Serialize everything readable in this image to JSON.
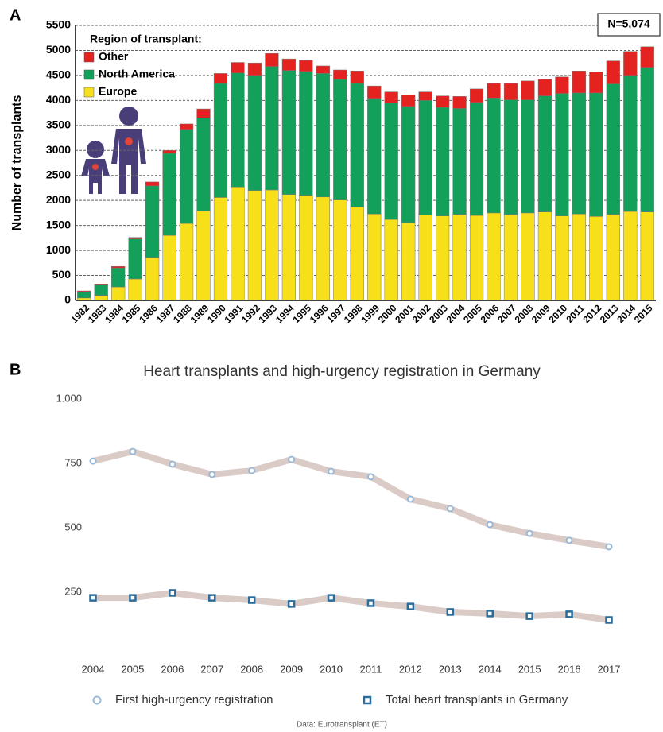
{
  "chart_data": [
    {
      "type": "bar",
      "stacked": true,
      "panel_label": "A",
      "y_label": "Number of transplants",
      "legend_title": "Region of transplant:",
      "annotations": [
        "N=5,074"
      ],
      "categories": [
        "1982",
        "1983",
        "1984",
        "1985",
        "1986",
        "1987",
        "1988",
        "1989",
        "1990",
        "1991",
        "1992",
        "1993",
        "1994",
        "1995",
        "1996",
        "1997",
        "1998",
        "1999",
        "2000",
        "2001",
        "2002",
        "2003",
        "2004",
        "2005",
        "2006",
        "2007",
        "2008",
        "2009",
        "2010",
        "2011",
        "2012",
        "2013",
        "2014",
        "2015"
      ],
      "series": [
        {
          "name": "Europe",
          "color": "#f7e01a",
          "values": [
            50,
            100,
            270,
            430,
            860,
            1300,
            1540,
            1790,
            2060,
            2270,
            2200,
            2210,
            2120,
            2100,
            2070,
            2010,
            1870,
            1730,
            1620,
            1560,
            1710,
            1690,
            1720,
            1700,
            1750,
            1720,
            1750,
            1770,
            1690,
            1730,
            1680,
            1720,
            1780,
            1770
          ]
        },
        {
          "name": "North America",
          "color": "#12a05a",
          "values": [
            120,
            210,
            380,
            800,
            1430,
            1640,
            1880,
            1860,
            2280,
            2280,
            2300,
            2470,
            2480,
            2480,
            2470,
            2410,
            2470,
            2310,
            2330,
            2320,
            2290,
            2170,
            2120,
            2260,
            2300,
            2290,
            2260,
            2320,
            2450,
            2420,
            2470,
            2610,
            2720,
            2890
          ]
        },
        {
          "name": "Other",
          "color": "#e42320",
          "values": [
            20,
            20,
            30,
            30,
            80,
            60,
            110,
            180,
            200,
            210,
            250,
            260,
            230,
            220,
            150,
            190,
            250,
            250,
            220,
            230,
            170,
            230,
            240,
            270,
            290,
            330,
            380,
            330,
            330,
            440,
            420,
            460,
            480,
            414
          ]
        }
      ],
      "ylim": [
        0,
        5500
      ],
      "yticks": [
        0,
        500,
        1000,
        1500,
        2000,
        2500,
        3000,
        3500,
        4000,
        4500,
        5000,
        5500
      ],
      "grid": true
    },
    {
      "type": "line",
      "panel_label": "B",
      "title": "Heart transplants and high-urgency registration in Germany",
      "source": "Data: Eurotransplant (ET)",
      "categories": [
        "2004",
        "2005",
        "2006",
        "2007",
        "2008",
        "2009",
        "2010",
        "2011",
        "2012",
        "2013",
        "2014",
        "2015",
        "2016",
        "2017"
      ],
      "series": [
        {
          "name": "First high-urgency registration",
          "color": "#9ab9d6",
          "marker": "circle",
          "values": [
            759,
            796,
            747,
            707,
            722,
            765,
            719,
            698,
            611,
            574,
            512,
            478,
            451,
            426
          ]
        },
        {
          "name": "Total heart transplants in Germany",
          "color": "#2b6c9b",
          "marker": "square",
          "values": [
            228,
            228,
            247,
            228,
            219,
            204,
            228,
            207,
            194,
            173,
            167,
            157,
            164,
            142
          ]
        }
      ],
      "ylim": [
        0,
        1000
      ],
      "yticks": [
        250,
        500,
        750,
        {
          "value": 1000,
          "label": "1.000"
        }
      ],
      "grid": false
    }
  ]
}
